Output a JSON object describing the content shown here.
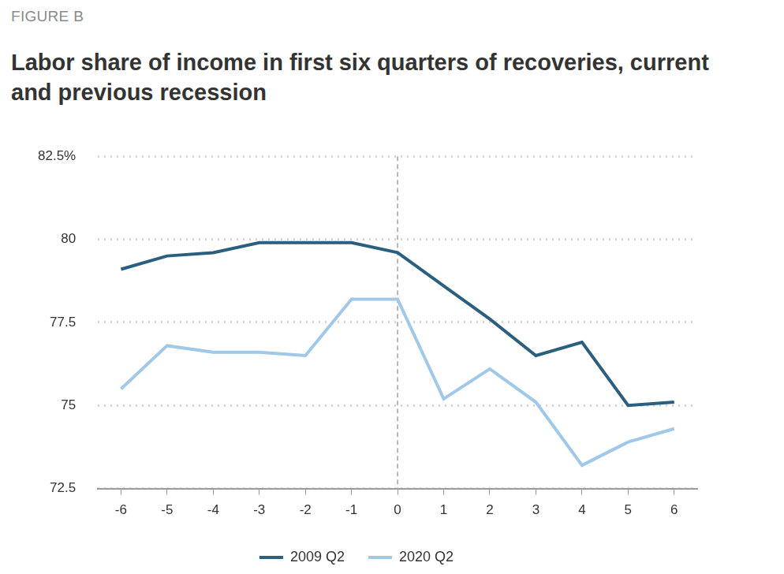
{
  "figure_label": "FIGURE B",
  "chart_data": {
    "type": "line",
    "title": "Labor share of income in first six quarters of recoveries, current and previous recession",
    "x": [
      -6,
      -5,
      -4,
      -3,
      -2,
      -1,
      0,
      1,
      2,
      3,
      4,
      5,
      6
    ],
    "xlim": [
      -6.5,
      6.5
    ],
    "xticks": [
      -6,
      -5,
      -4,
      -3,
      -2,
      -1,
      0,
      1,
      2,
      3,
      4,
      5,
      6
    ],
    "ylim": [
      72.5,
      82.5
    ],
    "yticks": [
      72.5,
      75,
      77.5,
      80,
      {
        "value": 82.5,
        "label": "82.5%"
      }
    ],
    "grid": true,
    "legend": "bottom",
    "vline_x": 0,
    "series": [
      {
        "name": "2009 Q2",
        "color": "#2b5f7f",
        "values": [
          79.1,
          79.5,
          79.6,
          79.9,
          79.9,
          79.9,
          79.6,
          78.6,
          77.6,
          76.5,
          76.9,
          75.0,
          75.1
        ]
      },
      {
        "name": "2020 Q2",
        "color": "#a0c8e8",
        "values": [
          75.5,
          76.8,
          76.6,
          76.6,
          76.5,
          78.2,
          78.2,
          75.2,
          76.1,
          75.1,
          73.2,
          73.9,
          74.3
        ]
      }
    ]
  }
}
